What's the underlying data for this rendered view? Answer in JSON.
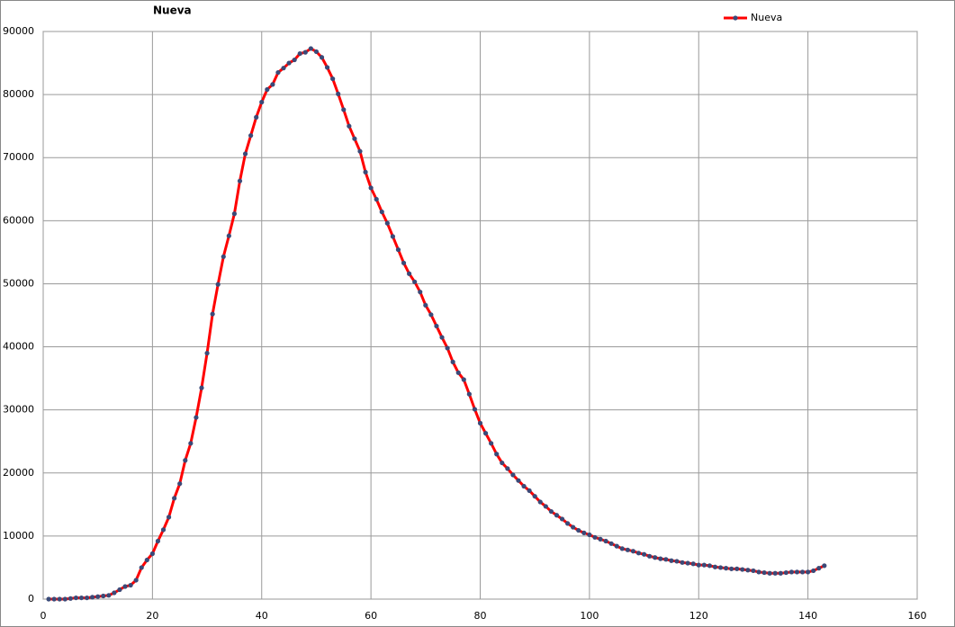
{
  "chart_data": {
    "type": "line",
    "title": "Nueva",
    "x": [
      1,
      2,
      3,
      4,
      5,
      6,
      7,
      8,
      9,
      10,
      11,
      12,
      13,
      14,
      15,
      16,
      17,
      18,
      19,
      20,
      21,
      22,
      23,
      24,
      25,
      26,
      27,
      28,
      29,
      30,
      31,
      32,
      33,
      34,
      35,
      36,
      37,
      38,
      39,
      40,
      41,
      42,
      43,
      44,
      45,
      46,
      47,
      48,
      49,
      50,
      51,
      52,
      53,
      54,
      55,
      56,
      57,
      58,
      59,
      60,
      61,
      62,
      63,
      64,
      65,
      66,
      67,
      68,
      69,
      70,
      71,
      72,
      73,
      74,
      75,
      76,
      77,
      78,
      79,
      80,
      81,
      82,
      83,
      84,
      85,
      86,
      87,
      88,
      89,
      90,
      91,
      92,
      93,
      94,
      95,
      96,
      97,
      98,
      99,
      100,
      101,
      102,
      103,
      104,
      105,
      106,
      107,
      108,
      109,
      110,
      111,
      112,
      113,
      114,
      115,
      116,
      117,
      118,
      119,
      120,
      121,
      122,
      123,
      124,
      125,
      126,
      127,
      128,
      129,
      130,
      131,
      132,
      133,
      134,
      135,
      136,
      137,
      138,
      139,
      140,
      141,
      142,
      143
    ],
    "series": [
      {
        "name": "Nueva",
        "color": "#ff0000",
        "marker_color": "#3b4a78",
        "values": [
          0,
          0,
          0,
          0,
          100,
          200,
          200,
          200,
          300,
          400,
          500,
          600,
          1000,
          1500,
          2000,
          2200,
          3000,
          5000,
          6200,
          7200,
          9200,
          11000,
          13000,
          16000,
          18300,
          22000,
          24700,
          28800,
          33500,
          39000,
          45200,
          49900,
          54300,
          57600,
          61100,
          66300,
          70600,
          73500,
          76400,
          78800,
          80800,
          81600,
          83500,
          84200,
          85000,
          85500,
          86500,
          86700,
          87300,
          86800,
          85900,
          84300,
          82500,
          80100,
          77600,
          75000,
          73000,
          71000,
          67700,
          65200,
          63400,
          61400,
          59600,
          57500,
          55400,
          53300,
          51600,
          50300,
          48700,
          46600,
          45100,
          43300,
          41500,
          39800,
          37600,
          35900,
          34800,
          32500,
          30100,
          27900,
          26300,
          24700,
          23000,
          21600,
          20700,
          19700,
          18800,
          17900,
          17200,
          16300,
          15400,
          14700,
          13900,
          13300,
          12700,
          12000,
          11400,
          10900,
          10500,
          10200,
          9800,
          9500,
          9200,
          8800,
          8400,
          8000,
          7800,
          7600,
          7300,
          7100,
          6800,
          6600,
          6400,
          6300,
          6100,
          6000,
          5800,
          5700,
          5600,
          5400,
          5400,
          5300,
          5100,
          5000,
          4900,
          4800,
          4800,
          4700,
          4600,
          4500,
          4300,
          4200,
          4100,
          4100,
          4100,
          4200,
          4300,
          4300,
          4300,
          4300,
          4500,
          4900,
          5300
        ]
      }
    ],
    "xlim": [
      0,
      160
    ],
    "xticks": [
      0,
      20,
      40,
      60,
      80,
      100,
      120,
      140,
      160
    ],
    "ylim": [
      0,
      90000
    ],
    "yticks": [
      0,
      10000,
      20000,
      30000,
      40000,
      50000,
      60000,
      70000,
      80000,
      90000
    ],
    "grid": true,
    "legend": "top-right"
  }
}
